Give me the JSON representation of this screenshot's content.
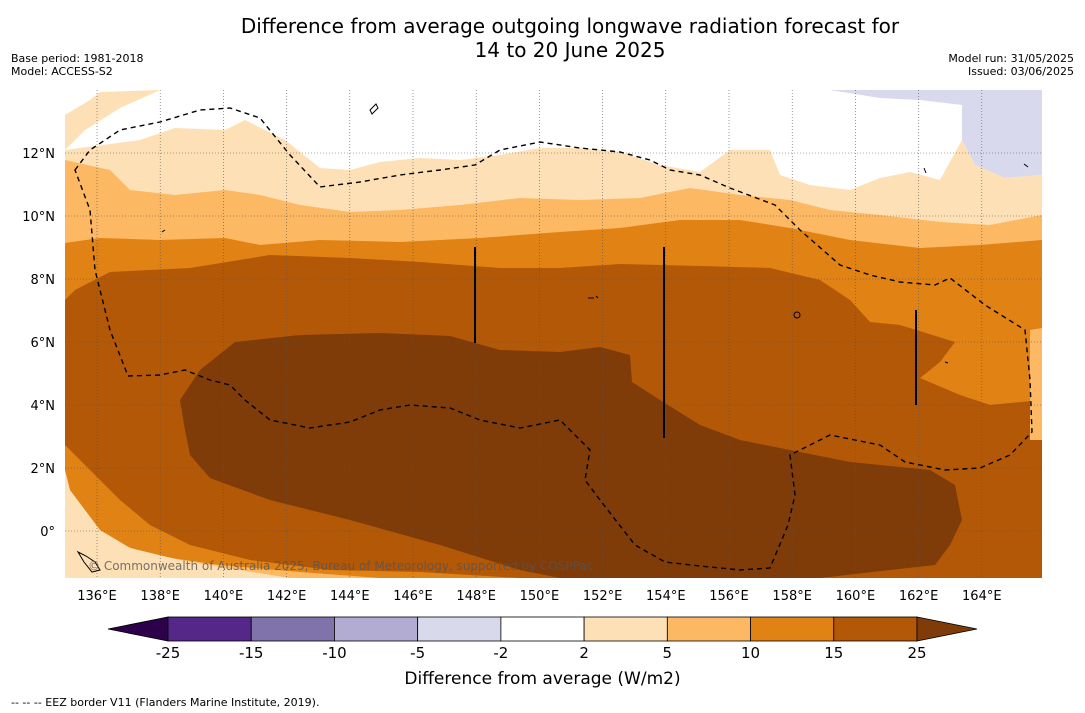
{
  "title": {
    "line1": "Difference from average outgoing longwave radiation forecast for",
    "line2": "14 to 20 June 2025"
  },
  "meta_left": {
    "base_period": "Base period: 1981-2018",
    "model": "Model: ACCESS-S2"
  },
  "meta_right": {
    "model_run": "Model run: 31/05/2025",
    "issued": "Issued: 03/06/2025"
  },
  "map": {
    "lat_labels": [
      "12°N",
      "10°N",
      "8°N",
      "6°N",
      "4°N",
      "2°N",
      "0°"
    ],
    "lon_labels": [
      "136°E",
      "138°E",
      "140°E",
      "142°E",
      "144°E",
      "146°E",
      "148°E",
      "150°E",
      "152°E",
      "154°E",
      "156°E",
      "158°E",
      "160°E",
      "162°E",
      "164°E"
    ],
    "copyright": "© Commonwealth of Australia 2025, Bureau of Meteorology, supported by COSPPac",
    "fill_colors": {
      "neg5": "#d8d9ec",
      "pos2": "#fee0b6",
      "pos5": "#fcb863",
      "pos10": "#e08214",
      "pos15": "#b35806",
      "pos25": "#7f3b08"
    }
  },
  "colorbar": {
    "title": "Difference from average (W/m2)",
    "ticks": [
      "-25",
      "-15",
      "-10",
      "-5",
      "-2",
      "2",
      "5",
      "10",
      "15",
      "25"
    ],
    "colors": [
      "#2d004b",
      "#542788",
      "#8073ac",
      "#b2abd2",
      "#d8daeb",
      "#ffffff",
      "#fee0b6",
      "#fdb863",
      "#e08214",
      "#b35806",
      "#7f3b08"
    ]
  },
  "footer": {
    "note": "-- -- -- EEZ border V11 (Flanders Marine Institute, 2019)."
  }
}
